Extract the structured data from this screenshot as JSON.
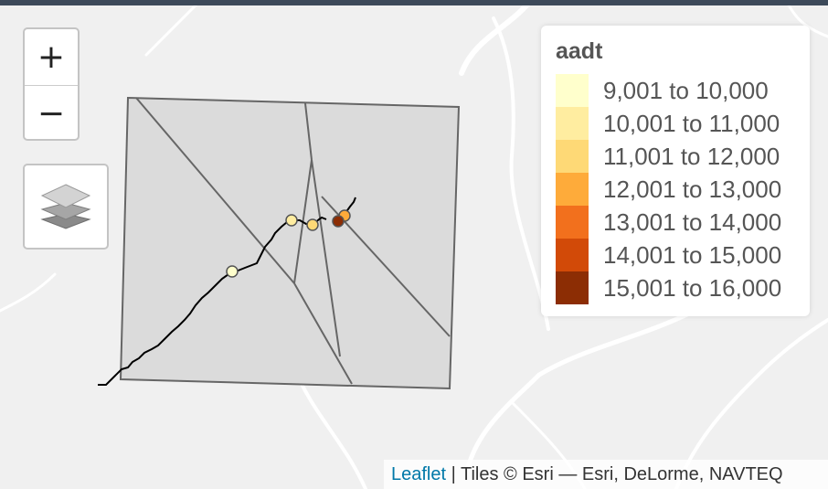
{
  "map": {
    "controls": {
      "zoom_in_label": "+",
      "zoom_out_label": "−"
    },
    "legend": {
      "title": "aadt",
      "items": [
        {
          "label": "9,001 to 10,000",
          "color": "#ffffcc"
        },
        {
          "label": "10,001 to 11,000",
          "color": "#ffeda0"
        },
        {
          "label": "11,001 to 12,000",
          "color": "#fed976"
        },
        {
          "label": "12,001 to 13,000",
          "color": "#feab3a"
        },
        {
          "label": "13,001 to 14,000",
          "color": "#f2701d"
        },
        {
          "label": "14,001 to 15,000",
          "color": "#d24a08"
        },
        {
          "label": "15,001 to 16,000",
          "color": "#8c2d04"
        }
      ]
    },
    "attribution": {
      "link_text": "Leaflet",
      "text": " | Tiles © Esri — Esri, DeLorme, NAVTEQ"
    },
    "colors": {
      "polygon_fill": "#d9d9d9",
      "polygon_stroke": "#666666",
      "route_line": "#000000",
      "basemap": "#f0f0f0",
      "basemap_roads": "#ffffff"
    },
    "points": [
      {
        "aadt_class": "9,001 to 10,000",
        "color": "#ffffcc"
      },
      {
        "aadt_class": "10,001 to 11,000",
        "color": "#ffeda0"
      },
      {
        "aadt_class": "11,001 to 12,000",
        "color": "#fed976"
      },
      {
        "aadt_class": "12,001 to 13,000",
        "color": "#feab3a"
      },
      {
        "aadt_class": "15,001 to 16,000",
        "color": "#8c2d04"
      }
    ]
  }
}
